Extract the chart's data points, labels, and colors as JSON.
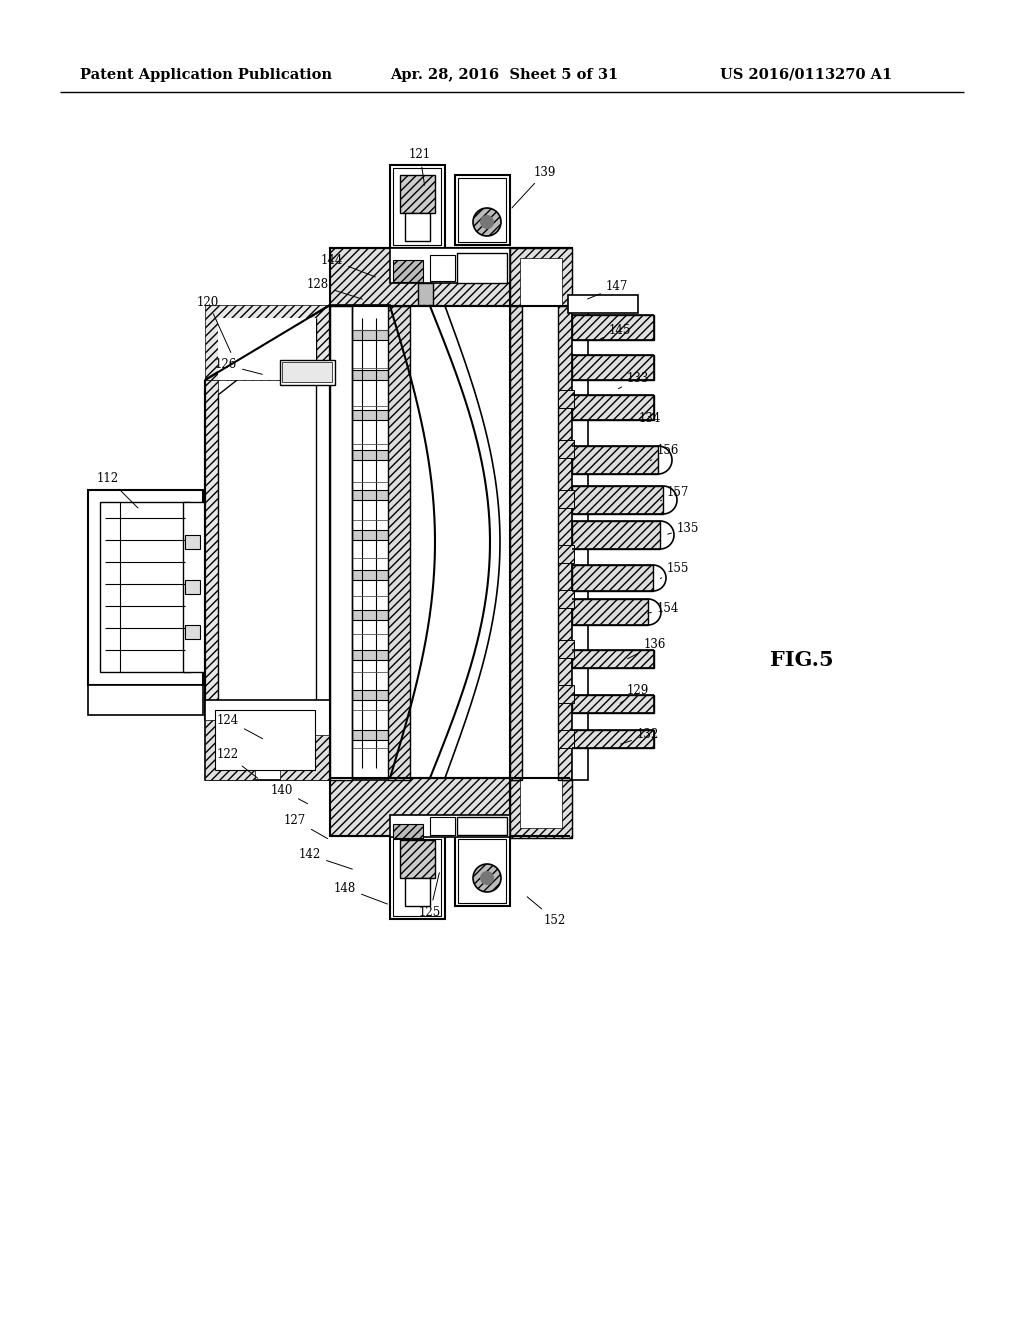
{
  "background_color": "#ffffff",
  "header_left": "Patent Application Publication",
  "header_center": "Apr. 28, 2016  Sheet 5 of 31",
  "header_right": "US 2016/0113270 A1",
  "figure_label": "FIG.5",
  "header_fontsize": 10.5,
  "ann_fontsize": 8.5,
  "fig_label_fontsize": 15
}
